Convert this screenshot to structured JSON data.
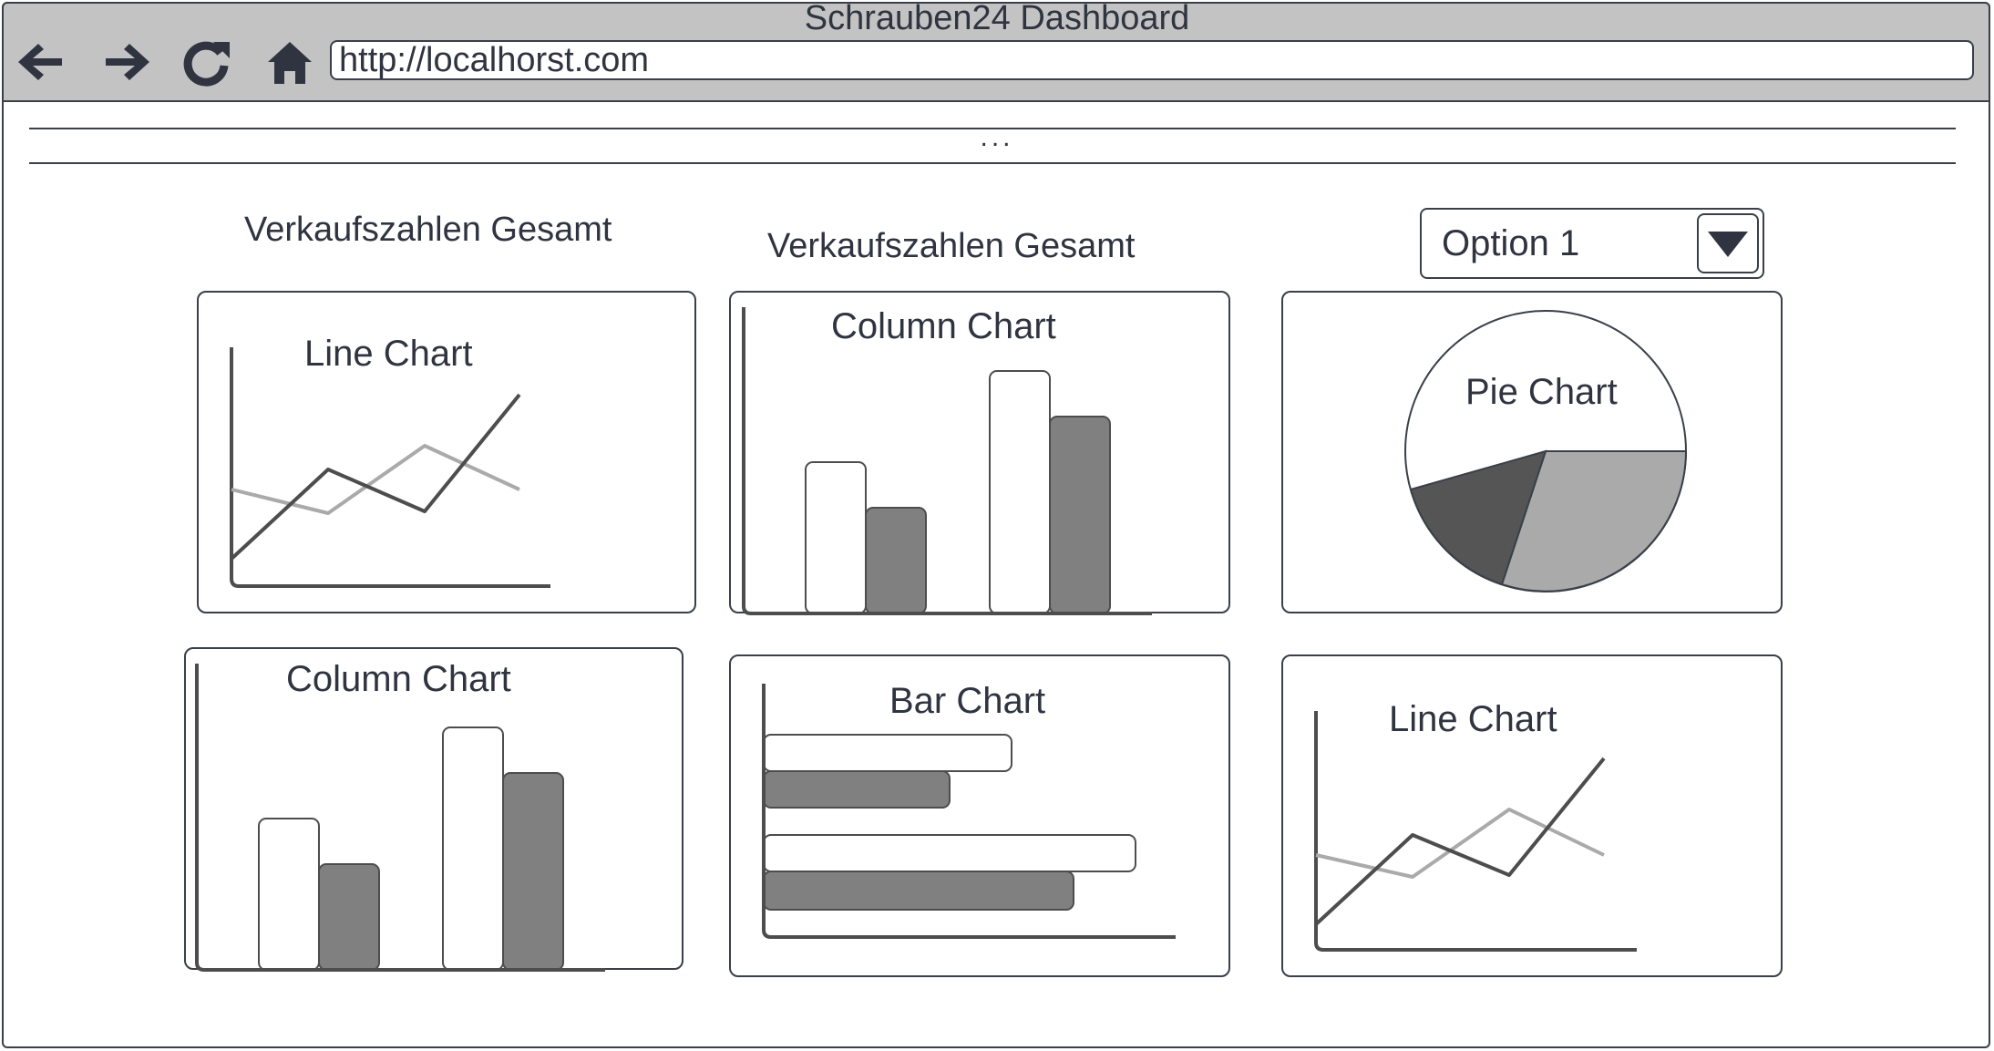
{
  "window": {
    "title": "Schrauben24 Dashboard",
    "url": "http://localhorst.com"
  },
  "nav": {
    "back_icon": "arrow-left-icon",
    "forward_icon": "arrow-right-icon",
    "reload_icon": "reload-icon",
    "home_icon": "home-icon"
  },
  "menu_bar": {
    "ellipsis": "..."
  },
  "headings": {
    "left": "Verkaufszahlen Gesamt",
    "middle": "Verkaufszahlen Gesamt"
  },
  "dropdown": {
    "selected": "Option 1",
    "icon": "triangle-down-icon"
  },
  "charts": [
    {
      "title": "Line Chart"
    },
    {
      "title": "Column Chart"
    },
    {
      "title": "Pie Chart"
    },
    {
      "title": "Column Chart"
    },
    {
      "title": "Bar Chart"
    },
    {
      "title": "Line Chart"
    }
  ],
  "colors": {
    "dark": "#4d4d4d",
    "mid": "#808080",
    "light": "#aaaaaa",
    "outline": "#3a3f4a"
  }
}
